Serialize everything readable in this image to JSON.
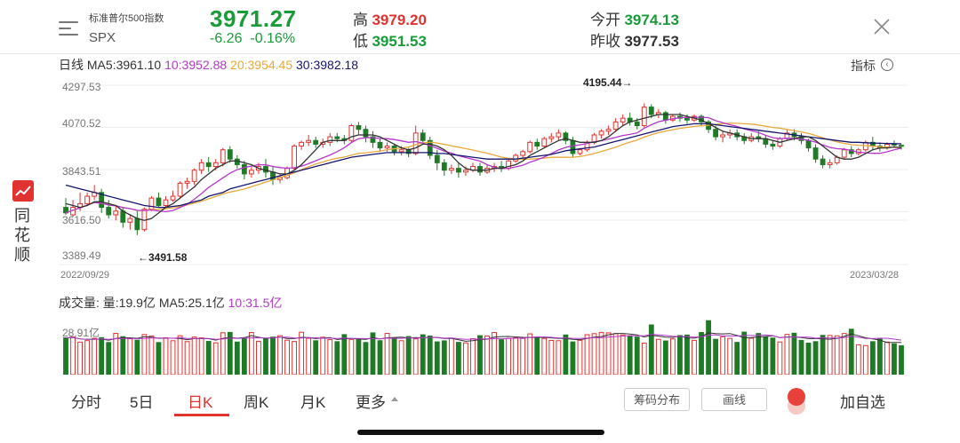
{
  "header": {
    "index_name": "标准普尔500指数",
    "index_code": "SPX",
    "price": "3971.27",
    "change": "-6.26",
    "change_pct": "-0.16%",
    "high_label": "高",
    "high_value": "3979.20",
    "low_label": "低",
    "low_value": "3951.53",
    "open_label": "今开",
    "open_value": "3974.13",
    "prev_close_label": "昨收",
    "prev_close_value": "3977.53"
  },
  "ma_row": {
    "period": "日线",
    "ma5": "MA5:3961.10",
    "ma10": "10:3952.88",
    "ma20": "20:3954.45",
    "ma30": "30:3982.18",
    "indicator_label": "指标"
  },
  "kline": {
    "y_ticks": [
      "4297.53",
      "4070.52",
      "3843.51",
      "3616.50",
      "3389.49"
    ],
    "date_start": "2022/09/29",
    "date_end": "2023/03/28",
    "high_annotation": "4195.44→",
    "low_annotation": "←3491.58"
  },
  "volume": {
    "title": "成交量:",
    "vol": "量:19.9亿",
    "ma5": "MA5:25.1亿",
    "ma10": "10:31.5亿",
    "axis_label": "28.91亿"
  },
  "side": {
    "text": "同花顺"
  },
  "tabs": [
    "分时",
    "5日",
    "日K",
    "周K",
    "月K",
    "更多"
  ],
  "buttons": {
    "chips": "筹码分布",
    "draw": "画线",
    "add_fav": "加自选"
  },
  "colors": {
    "up": "#e0322f",
    "down": "#1f7a26",
    "ma5": "#333333",
    "ma10": "#b337c9",
    "ma20": "#e8a83c",
    "ma30": "#14166e"
  },
  "chart_data": {
    "type": "candlestick",
    "x_start": "2022/09/29",
    "x_end": "2023/03/28",
    "ylim": [
      3389.49,
      4297.53
    ],
    "y_ticks": [
      4297.53,
      4070.52,
      3843.51,
      3616.5,
      3389.49
    ],
    "annotations": [
      {
        "label": "4195.44",
        "value": 4195.44
      },
      {
        "label": "3491.58",
        "value": 3491.58
      }
    ],
    "ohlc": [
      [
        3640,
        3690,
        3610,
        3600
      ],
      [
        3600,
        3680,
        3640,
        3590
      ],
      [
        3640,
        3720,
        3660,
        3620
      ],
      [
        3660,
        3720,
        3700,
        3650
      ],
      [
        3700,
        3760,
        3720,
        3680
      ],
      [
        3720,
        3740,
        3640,
        3610
      ],
      [
        3640,
        3680,
        3600,
        3580
      ],
      [
        3600,
        3650,
        3620,
        3570
      ],
      [
        3620,
        3640,
        3560,
        3530
      ],
      [
        3560,
        3600,
        3580,
        3520
      ],
      [
        3580,
        3620,
        3520,
        3491
      ],
      [
        3520,
        3640,
        3630,
        3510
      ],
      [
        3630,
        3700,
        3690,
        3620
      ],
      [
        3690,
        3720,
        3650,
        3640
      ],
      [
        3650,
        3700,
        3680,
        3630
      ],
      [
        3680,
        3730,
        3700,
        3670
      ],
      [
        3700,
        3780,
        3770,
        3690
      ],
      [
        3770,
        3800,
        3780,
        3740
      ],
      [
        3780,
        3850,
        3840,
        3760
      ],
      [
        3840,
        3900,
        3880,
        3820
      ],
      [
        3880,
        3910,
        3860,
        3830
      ],
      [
        3860,
        3900,
        3880,
        3840
      ],
      [
        3880,
        3960,
        3950,
        3860
      ],
      [
        3950,
        3970,
        3900,
        3880
      ],
      [
        3900,
        3920,
        3870,
        3850
      ],
      [
        3870,
        3890,
        3820,
        3790
      ],
      [
        3820,
        3860,
        3840,
        3800
      ],
      [
        3840,
        3880,
        3860,
        3820
      ],
      [
        3860,
        3900,
        3830,
        3800
      ],
      [
        3830,
        3860,
        3790,
        3760
      ],
      [
        3790,
        3820,
        3800,
        3770
      ],
      [
        3800,
        3860,
        3850,
        3790
      ],
      [
        3850,
        3980,
        3970,
        3840
      ],
      [
        3970,
        4000,
        3990,
        3950
      ],
      [
        3990,
        4030,
        4000,
        3970
      ],
      [
        4000,
        4020,
        3980,
        3960
      ],
      [
        3980,
        4010,
        3990,
        3960
      ],
      [
        3990,
        4040,
        4020,
        3970
      ],
      [
        4020,
        4040,
        4010,
        3990
      ],
      [
        4010,
        4030,
        4000,
        3980
      ],
      [
        4000,
        4090,
        4080,
        3990
      ],
      [
        4080,
        4100,
        4060,
        4030
      ],
      [
        4060,
        4080,
        4020,
        3990
      ],
      [
        4020,
        4050,
        3990,
        3960
      ],
      [
        3990,
        4010,
        3960,
        3940
      ],
      [
        3960,
        3990,
        3970,
        3940
      ],
      [
        3970,
        3980,
        3940,
        3920
      ],
      [
        3940,
        3970,
        3950,
        3920
      ],
      [
        3950,
        3960,
        3930,
        3910
      ],
      [
        3930,
        4080,
        4040,
        3920
      ],
      [
        4040,
        4060,
        4000,
        3980
      ],
      [
        4000,
        4020,
        3920,
        3900
      ],
      [
        3920,
        3950,
        3880,
        3840
      ],
      [
        3880,
        3900,
        3840,
        3810
      ],
      [
        3840,
        3870,
        3850,
        3820
      ],
      [
        3850,
        3880,
        3830,
        3800
      ],
      [
        3830,
        3860,
        3840,
        3810
      ],
      [
        3840,
        3880,
        3860,
        3830
      ],
      [
        3860,
        3880,
        3830,
        3810
      ],
      [
        3830,
        3870,
        3850,
        3820
      ],
      [
        3850,
        3880,
        3860,
        3830
      ],
      [
        3860,
        3890,
        3850,
        3830
      ],
      [
        3850,
        3900,
        3890,
        3840
      ],
      [
        3890,
        3930,
        3920,
        3880
      ],
      [
        3920,
        3950,
        3940,
        3900
      ],
      [
        3940,
        4000,
        3990,
        3930
      ],
      [
        3990,
        4010,
        3970,
        3950
      ],
      [
        3970,
        4020,
        4010,
        3960
      ],
      [
        4010,
        4040,
        4020,
        3990
      ],
      [
        4020,
        4060,
        4040,
        4000
      ],
      [
        4040,
        4050,
        4000,
        3980
      ],
      [
        4000,
        4020,
        3930,
        3910
      ],
      [
        3930,
        3960,
        3950,
        3920
      ],
      [
        3950,
        4000,
        3990,
        3940
      ],
      [
        3990,
        4040,
        4030,
        3980
      ],
      [
        4030,
        4060,
        4050,
        4010
      ],
      [
        4050,
        4080,
        4060,
        4030
      ],
      [
        4060,
        4120,
        4100,
        4050
      ],
      [
        4100,
        4140,
        4120,
        4080
      ],
      [
        4120,
        4150,
        4100,
        4080
      ],
      [
        4100,
        4120,
        4080,
        4060
      ],
      [
        4080,
        4200,
        4180,
        4070
      ],
      [
        4180,
        4195,
        4140,
        4120
      ],
      [
        4140,
        4170,
        4150,
        4120
      ],
      [
        4150,
        4160,
        4110,
        4090
      ],
      [
        4110,
        4140,
        4130,
        4100
      ],
      [
        4130,
        4150,
        4120,
        4100
      ],
      [
        4120,
        4140,
        4110,
        4090
      ],
      [
        4110,
        4140,
        4130,
        4100
      ],
      [
        4130,
        4140,
        4100,
        4080
      ],
      [
        4100,
        4110,
        4060,
        4040
      ],
      [
        4060,
        4080,
        4020,
        4000
      ],
      [
        4020,
        4050,
        4030,
        3990
      ],
      [
        4030,
        4060,
        4040,
        4010
      ],
      [
        4040,
        4060,
        4020,
        4000
      ],
      [
        4020,
        4040,
        4000,
        3980
      ],
      [
        4000,
        4040,
        4020,
        3990
      ],
      [
        4020,
        4050,
        4010,
        3990
      ],
      [
        4010,
        4030,
        3980,
        3960
      ],
      [
        3980,
        4000,
        3970,
        3950
      ],
      [
        3970,
        4020,
        4010,
        3960
      ],
      [
        4010,
        4060,
        4040,
        4000
      ],
      [
        4040,
        4060,
        4020,
        4000
      ],
      [
        4020,
        4040,
        4000,
        3980
      ],
      [
        4000,
        4010,
        3960,
        3940
      ],
      [
        3960,
        3980,
        3900,
        3880
      ],
      [
        3900,
        3920,
        3870,
        3850
      ],
      [
        3870,
        3900,
        3880,
        3850
      ],
      [
        3880,
        3920,
        3910,
        3870
      ],
      [
        3910,
        3960,
        3950,
        3900
      ],
      [
        3950,
        3970,
        3930,
        3910
      ],
      [
        3930,
        3960,
        3950,
        3920
      ],
      [
        3950,
        4000,
        3990,
        3940
      ],
      [
        3990,
        4020,
        3970,
        3950
      ],
      [
        3970,
        3990,
        3960,
        3940
      ],
      [
        3960,
        3990,
        3980,
        3950
      ],
      [
        3980,
        4000,
        3977,
        3960
      ],
      [
        3974,
        3979,
        3971,
        3951
      ]
    ],
    "ma5": [
      3660,
      3650,
      3640,
      3650,
      3670,
      3670,
      3660,
      3650,
      3620,
      3600,
      3580,
      3570,
      3580,
      3610,
      3640,
      3660,
      3690,
      3720,
      3750,
      3790,
      3820,
      3850,
      3870,
      3890,
      3890,
      3880,
      3870,
      3850,
      3840,
      3830,
      3820,
      3820,
      3840,
      3870,
      3910,
      3950,
      3990,
      4000,
      4000,
      4000,
      4020,
      4030,
      4030,
      4030,
      4020,
      4000,
      3980,
      3960,
      3950,
      3960,
      3980,
      3980,
      3970,
      3950,
      3920,
      3880,
      3850,
      3840,
      3840,
      3840,
      3850,
      3850,
      3860,
      3870,
      3890,
      3920,
      3940,
      3960,
      3980,
      4000,
      4010,
      4000,
      3990,
      3990,
      3990,
      4000,
      4020,
      4050,
      4080,
      4100,
      4110,
      4120,
      4130,
      4140,
      4140,
      4140,
      4140,
      4130,
      4120,
      4110,
      4090,
      4070,
      4050,
      4040,
      4030,
      4020,
      4010,
      4010,
      4010,
      4000,
      3990,
      4000,
      4010,
      4020,
      4020,
      4000,
      3970,
      3940,
      3910,
      3900,
      3900,
      3910,
      3930,
      3950,
      3960,
      3960,
      3965,
      3961
    ],
    "ma30": [
      3760,
      3750,
      3740,
      3730,
      3720,
      3710,
      3700,
      3690,
      3680,
      3670,
      3660,
      3650,
      3645,
      3640,
      3640,
      3645,
      3650,
      3660,
      3670,
      3680,
      3700,
      3710,
      3720,
      3740,
      3750,
      3760,
      3770,
      3780,
      3790,
      3800,
      3810,
      3820,
      3830,
      3840,
      3850,
      3860,
      3870,
      3880,
      3890,
      3900,
      3910,
      3915,
      3920,
      3925,
      3930,
      3935,
      3935,
      3935,
      3935,
      3935,
      3935,
      3935,
      3930,
      3930,
      3925,
      3920,
      3915,
      3910,
      3905,
      3900,
      3900,
      3900,
      3900,
      3900,
      3905,
      3910,
      3915,
      3920,
      3925,
      3935,
      3945,
      3950,
      3955,
      3960,
      3965,
      3975,
      3985,
      3995,
      4005,
      4015,
      4025,
      4035,
      4045,
      4055,
      4065,
      4075,
      4080,
      4085,
      4090,
      4090,
      4090,
      4085,
      4080,
      4075,
      4070,
      4065,
      4060,
      4055,
      4050,
      4045,
      4040,
      4035,
      4030,
      4025,
      4020,
      4015,
      4010,
      4005,
      4000,
      3995,
      3990,
      3990,
      3988,
      3986,
      3985,
      3984,
      3983,
      3982
    ]
  }
}
